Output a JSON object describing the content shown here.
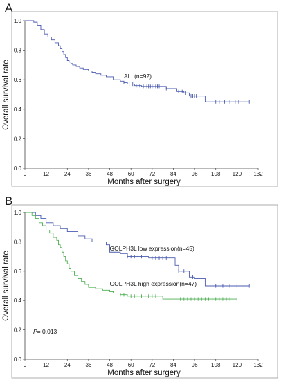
{
  "panels": [
    {
      "letter": "A",
      "xlabel": "Months after surgery",
      "ylabel": "Overall survival rate",
      "note": ""
    },
    {
      "letter": "B",
      "xlabel": "Months after surgery",
      "ylabel": "Overall survival rate",
      "note": "= 0.013",
      "note_italic": "P"
    }
  ],
  "chart_data": [
    {
      "type": "line",
      "step": true,
      "xlim": [
        0,
        132
      ],
      "ylim": [
        0,
        1.0
      ],
      "x_ticks": [
        0,
        12,
        24,
        36,
        48,
        60,
        72,
        84,
        96,
        108,
        120,
        132
      ],
      "y_ticks": [
        0.0,
        0.2,
        0.4,
        0.6,
        0.8,
        1.0
      ],
      "xlabel": "Months after surgery",
      "ylabel": "Overall survival rate",
      "grid": false,
      "series": [
        {
          "name": "ALL(n=92)",
          "color": "#4a5bb0",
          "x": [
            0,
            5,
            7,
            9,
            11,
            13,
            15,
            17,
            19,
            20,
            21,
            22,
            23,
            24,
            25,
            26,
            27,
            29,
            31,
            33,
            36,
            38,
            40,
            43,
            46,
            50,
            54,
            56,
            58,
            62,
            66,
            80,
            86,
            90,
            93,
            102
          ],
          "y": [
            1.0,
            0.99,
            0.97,
            0.94,
            0.91,
            0.89,
            0.87,
            0.85,
            0.83,
            0.81,
            0.79,
            0.77,
            0.75,
            0.73,
            0.72,
            0.71,
            0.7,
            0.69,
            0.68,
            0.67,
            0.66,
            0.65,
            0.64,
            0.63,
            0.62,
            0.6,
            0.59,
            0.58,
            0.57,
            0.56,
            0.555,
            0.54,
            0.52,
            0.51,
            0.49,
            0.45
          ],
          "censored_x": [
            56,
            59,
            61,
            63,
            64,
            65,
            67,
            69,
            70,
            71,
            72,
            73,
            74,
            75,
            76,
            80,
            87,
            89,
            91,
            94,
            95,
            96,
            97,
            108,
            110,
            113,
            116,
            119,
            121,
            124,
            127
          ],
          "label_text": "ALL(n=92)"
        }
      ]
    },
    {
      "type": "line",
      "step": true,
      "xlim": [
        0,
        132
      ],
      "ylim": [
        0,
        1.0
      ],
      "x_ticks": [
        0,
        12,
        24,
        36,
        48,
        60,
        72,
        84,
        96,
        108,
        120,
        132
      ],
      "y_ticks": [
        0.0,
        0.2,
        0.4,
        0.6,
        0.8,
        1.0
      ],
      "xlabel": "Months after surgery",
      "ylabel": "Overall survival rate",
      "grid": false,
      "annotation": "P= 0.013",
      "series": [
        {
          "name": "GOLPH3L low expression(n=45)",
          "color": "#4a5bb0",
          "x": [
            0,
            6,
            9,
            12,
            16,
            20,
            24,
            30,
            34,
            38,
            46,
            48,
            54,
            58,
            70,
            85,
            87,
            93,
            96,
            102
          ],
          "y": [
            1.0,
            0.98,
            0.96,
            0.93,
            0.91,
            0.89,
            0.87,
            0.84,
            0.82,
            0.8,
            0.78,
            0.73,
            0.72,
            0.7,
            0.69,
            0.64,
            0.6,
            0.56,
            0.55,
            0.5
          ],
          "censored_x": [
            58,
            60,
            62,
            64,
            66,
            68,
            72,
            74,
            76,
            78,
            80,
            87,
            90,
            95,
            108,
            112,
            116,
            120,
            124,
            127
          ],
          "label_text": "GOLPH3L low expression(n=45)"
        },
        {
          "name": "GOLPH3L high expression(n=47)",
          "color": "#4caf50",
          "x": [
            0,
            4,
            6,
            8,
            10,
            12,
            14,
            16,
            18,
            19,
            20,
            21,
            22,
            23,
            24,
            25,
            26,
            28,
            30,
            32,
            34,
            36,
            40,
            44,
            48,
            50,
            54,
            58,
            78
          ],
          "y": [
            1.0,
            0.98,
            0.96,
            0.93,
            0.91,
            0.88,
            0.86,
            0.83,
            0.81,
            0.78,
            0.76,
            0.73,
            0.7,
            0.67,
            0.65,
            0.62,
            0.6,
            0.57,
            0.55,
            0.53,
            0.51,
            0.49,
            0.48,
            0.47,
            0.46,
            0.45,
            0.44,
            0.43,
            0.41
          ],
          "censored_x": [
            54,
            56,
            60,
            62,
            64,
            66,
            68,
            70,
            72,
            74,
            88,
            90,
            92,
            94,
            96,
            98,
            100,
            102,
            104,
            106,
            108,
            110,
            112,
            114,
            116,
            120
          ],
          "label_text": "GOLPH3L high expression(n=47)"
        }
      ]
    }
  ]
}
